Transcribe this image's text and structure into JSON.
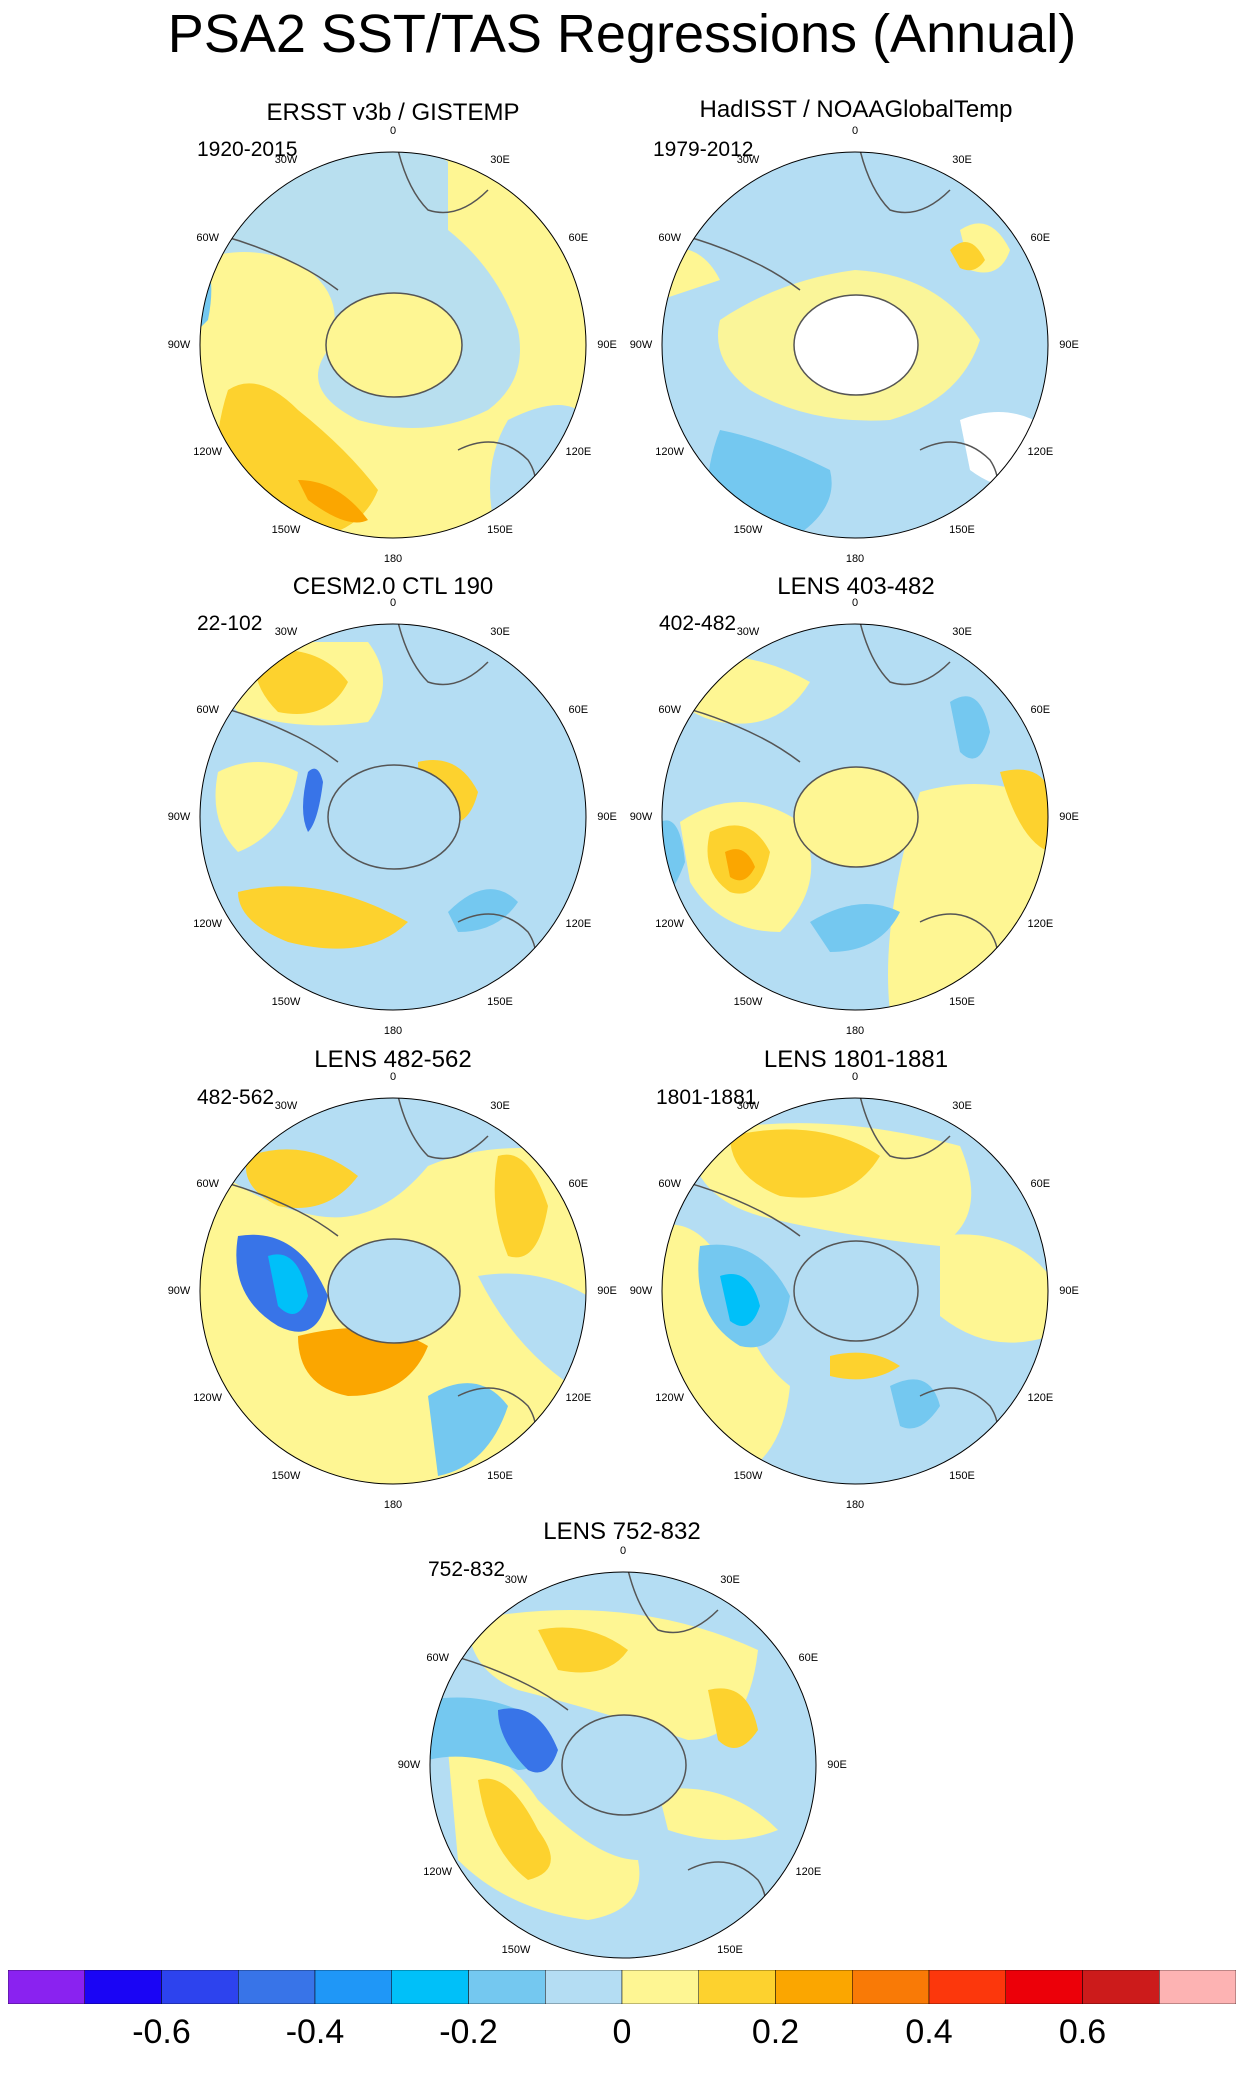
{
  "title": "PSA2 SST/TAS Regressions (Annual)",
  "degree_labels": [
    "0",
    "30E",
    "60E",
    "90E",
    "120E",
    "150E",
    "180",
    "150W",
    "120W",
    "90W",
    "60W",
    "30W"
  ],
  "panels": [
    {
      "title": "ERSST v3b / GISTEMP",
      "period": "1920-2015"
    },
    {
      "title": "HadISST / NOAAGlobalTemp",
      "period": "1979-2012"
    },
    {
      "title": "CESM2.0 CTL 190",
      "period": "22-102"
    },
    {
      "title": "LENS 403-482",
      "period": "402-482"
    },
    {
      "title": "LENS 482-562",
      "period": "482-562"
    },
    {
      "title": "LENS 1801-1881",
      "period": "1801-1881"
    },
    {
      "title": "LENS 752-832",
      "period": "752-832"
    }
  ],
  "colorbar": {
    "colors": [
      "#8a22f0",
      "#1a05f5",
      "#2d43ee",
      "#3874e8",
      "#1f97f7",
      "#00c0f9",
      "#74c8f0",
      "#b4ddf3",
      "#fef693",
      "#fdd22e",
      "#fba600",
      "#f97a06",
      "#fc370c",
      "#ec0009",
      "#cc1b1b",
      "#fdb3b3"
    ],
    "tick_labels": [
      "-0.6",
      "-0.4",
      "-0.2",
      "0",
      "0.2",
      "0.4",
      "0.6"
    ]
  }
}
